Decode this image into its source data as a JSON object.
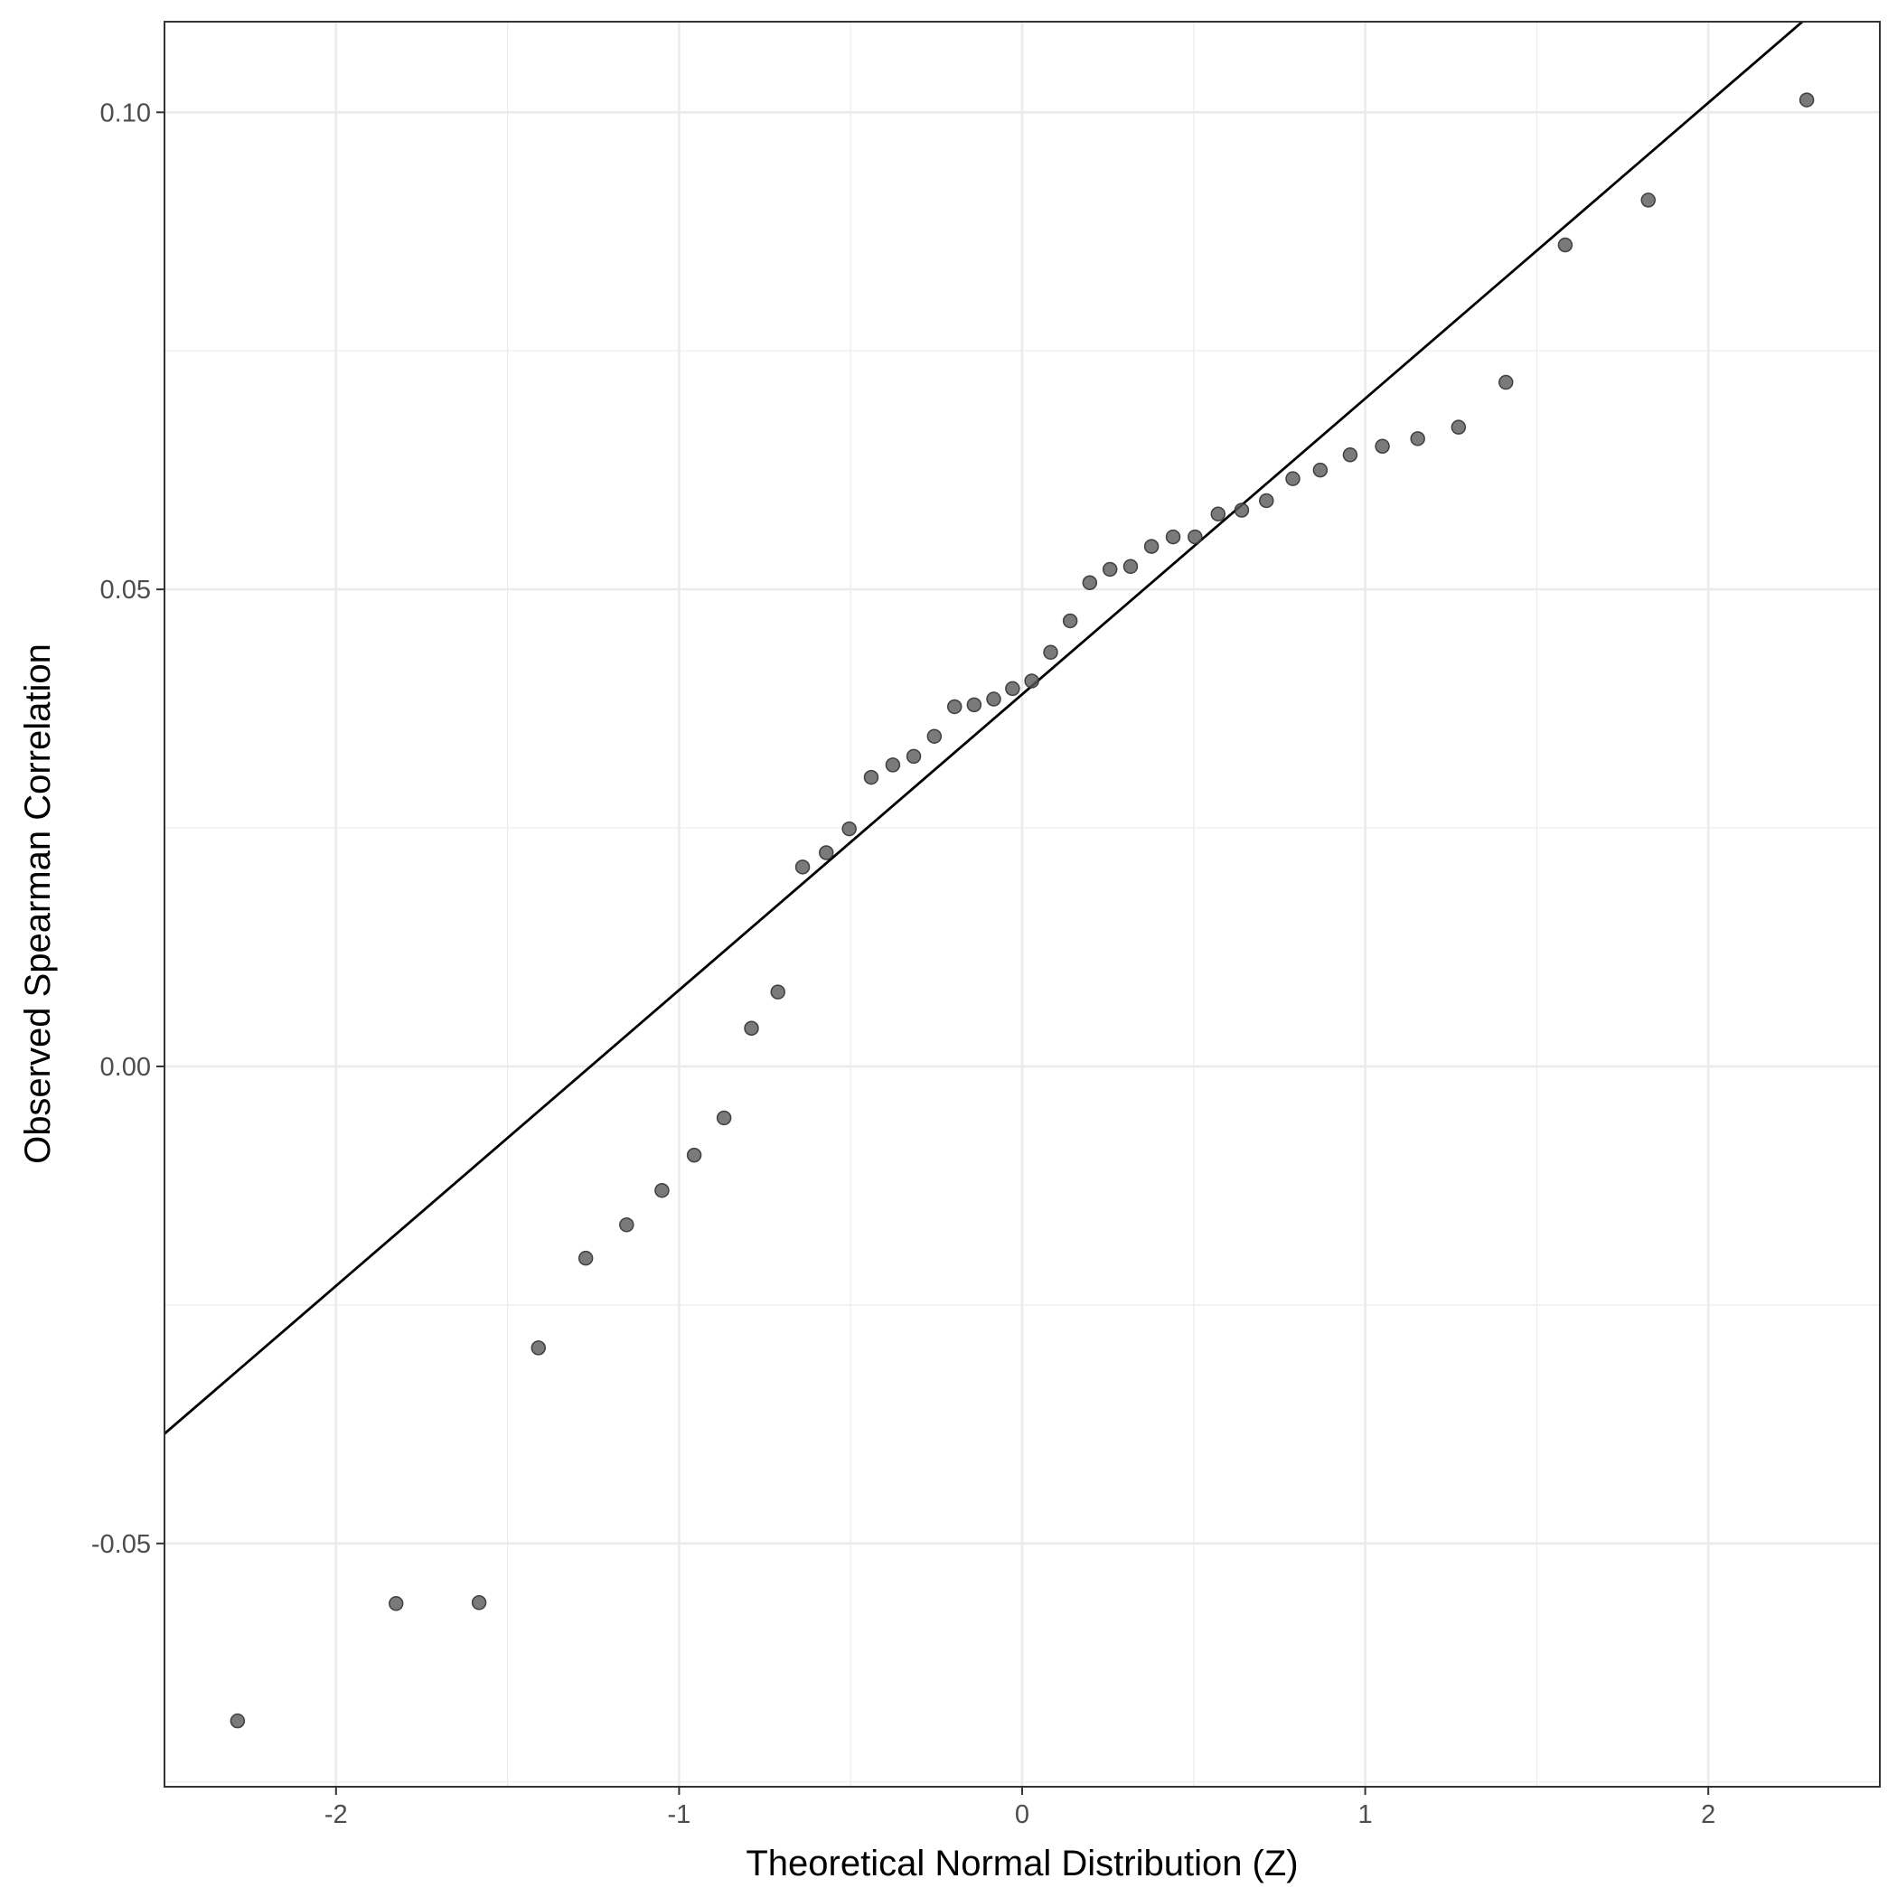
{
  "chart_data": {
    "type": "scatter",
    "title": "",
    "xlabel": "Theoretical Normal Distribution (Z)",
    "ylabel": "Observed Spearman Correlation",
    "xlim": [
      -2.5,
      2.5
    ],
    "ylim": [
      -0.0755,
      0.1095
    ],
    "x_ticks": [
      -2,
      -1,
      0,
      1,
      2
    ],
    "x_tick_labels": [
      "-2",
      "-1",
      "0",
      "1",
      "2"
    ],
    "y_ticks": [
      -0.05,
      0.0,
      0.05,
      0.1
    ],
    "y_tick_labels": [
      "-0.05",
      "0.00",
      "0.05",
      "0.10"
    ],
    "x_minor_ticks": [
      -1.5,
      -0.5,
      0.5,
      1.5
    ],
    "y_minor_ticks": [
      -0.075,
      -0.025,
      0.025,
      0.075
    ],
    "grid": true,
    "point_color": "#595959",
    "point_alpha": 0.8,
    "line_color": "#000000",
    "reference_line": {
      "slope": 0.031,
      "intercept": 0.039
    },
    "points": [
      {
        "x": -2.287,
        "y": -0.0686
      },
      {
        "x": -1.825,
        "y": -0.0563
      },
      {
        "x": -1.583,
        "y": -0.0562
      },
      {
        "x": -1.41,
        "y": -0.0295
      },
      {
        "x": -1.272,
        "y": -0.0201
      },
      {
        "x": -1.153,
        "y": -0.0166
      },
      {
        "x": -1.05,
        "y": -0.013
      },
      {
        "x": -0.956,
        "y": -0.0093
      },
      {
        "x": -0.869,
        "y": -0.0054
      },
      {
        "x": -0.789,
        "y": 0.004
      },
      {
        "x": -0.712,
        "y": 0.0078
      },
      {
        "x": -0.64,
        "y": 0.0209
      },
      {
        "x": -0.571,
        "y": 0.0224
      },
      {
        "x": -0.504,
        "y": 0.0249
      },
      {
        "x": -0.44,
        "y": 0.0303
      },
      {
        "x": -0.377,
        "y": 0.0316
      },
      {
        "x": -0.316,
        "y": 0.0325
      },
      {
        "x": -0.256,
        "y": 0.0346
      },
      {
        "x": -0.197,
        "y": 0.0377
      },
      {
        "x": -0.14,
        "y": 0.0379
      },
      {
        "x": -0.083,
        "y": 0.0385
      },
      {
        "x": -0.028,
        "y": 0.0396
      },
      {
        "x": 0.028,
        "y": 0.0404
      },
      {
        "x": 0.083,
        "y": 0.0434
      },
      {
        "x": 0.14,
        "y": 0.0467
      },
      {
        "x": 0.197,
        "y": 0.0507
      },
      {
        "x": 0.256,
        "y": 0.0521
      },
      {
        "x": 0.316,
        "y": 0.0524
      },
      {
        "x": 0.377,
        "y": 0.0545
      },
      {
        "x": 0.44,
        "y": 0.0555
      },
      {
        "x": 0.504,
        "y": 0.0555
      },
      {
        "x": 0.571,
        "y": 0.0579
      },
      {
        "x": 0.64,
        "y": 0.0583
      },
      {
        "x": 0.712,
        "y": 0.0593
      },
      {
        "x": 0.789,
        "y": 0.0616
      },
      {
        "x": 0.869,
        "y": 0.0625
      },
      {
        "x": 0.956,
        "y": 0.0641
      },
      {
        "x": 1.05,
        "y": 0.065
      },
      {
        "x": 1.153,
        "y": 0.0658
      },
      {
        "x": 1.272,
        "y": 0.067
      },
      {
        "x": 1.41,
        "y": 0.0717
      },
      {
        "x": 1.583,
        "y": 0.0861
      },
      {
        "x": 1.825,
        "y": 0.0908
      },
      {
        "x": 2.287,
        "y": 0.1013
      }
    ]
  }
}
